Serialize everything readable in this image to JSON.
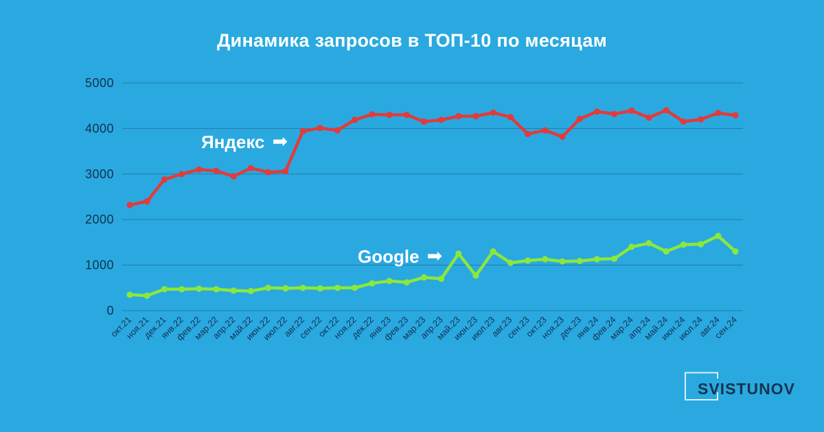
{
  "title": "Динамика запросов в ТОП-10 по месяцам",
  "chart_data": {
    "type": "line",
    "title": "Динамика запросов в ТОП-10 по месяцам",
    "xlabel": "",
    "ylabel": "",
    "ylim": [
      0,
      5000
    ],
    "yticks": [
      0,
      1000,
      2000,
      3000,
      4000,
      5000
    ],
    "grid": true,
    "legend_position": "inline-annotations",
    "categories": [
      "окт.21",
      "ноя.21",
      "дек.21",
      "янв.22",
      "фев.22",
      "мар.22",
      "апр.22",
      "май.22",
      "июн.22",
      "июл.22",
      "авг.22",
      "сен.22",
      "окт.22",
      "ноя.22",
      "дек.22",
      "янв.23",
      "фев.23",
      "мар.23",
      "апр.23",
      "май.23",
      "июн.23",
      "июл.23",
      "авг.23",
      "сен.23",
      "окт.23",
      "ноя.23",
      "дек.23",
      "янв.24",
      "фев.24",
      "мар.24",
      "апр.24",
      "май.24",
      "июн.24",
      "июл.24",
      "авг.24",
      "сен.24"
    ],
    "series": [
      {
        "name": "Яндекс",
        "color": "#e23b3b",
        "values": [
          2320,
          2400,
          2880,
          3000,
          3100,
          3070,
          2950,
          3130,
          3040,
          3060,
          3940,
          4010,
          3960,
          4190,
          4310,
          4300,
          4300,
          4150,
          4190,
          4270,
          4270,
          4350,
          4250,
          3880,
          3960,
          3820,
          4210,
          4370,
          4320,
          4390,
          4240,
          4400,
          4150,
          4200,
          4340,
          4290
        ]
      },
      {
        "name": "Google",
        "color": "#8ce73c",
        "values": [
          350,
          330,
          470,
          470,
          480,
          470,
          440,
          430,
          500,
          490,
          500,
          490,
          500,
          500,
          600,
          650,
          620,
          730,
          700,
          1250,
          770,
          1300,
          1050,
          1100,
          1130,
          1080,
          1090,
          1130,
          1140,
          1400,
          1480,
          1300,
          1450,
          1460,
          1640,
          1300
        ]
      }
    ]
  },
  "annotations": {
    "yandex": {
      "text": "Яндекс",
      "arrow": "➡"
    },
    "google": {
      "text": "Google",
      "arrow": "➡"
    }
  },
  "logo": {
    "text": "SVISTUNOV"
  },
  "colors": {
    "background": "#29a9e0",
    "title": "#ffffff",
    "axis_text": "#14304e",
    "gridline": "#2b6a96",
    "yandex": "#e23b3b",
    "google": "#8ce73c",
    "logo_text": "#16334f",
    "logo_frame": "#d8f1fa"
  }
}
